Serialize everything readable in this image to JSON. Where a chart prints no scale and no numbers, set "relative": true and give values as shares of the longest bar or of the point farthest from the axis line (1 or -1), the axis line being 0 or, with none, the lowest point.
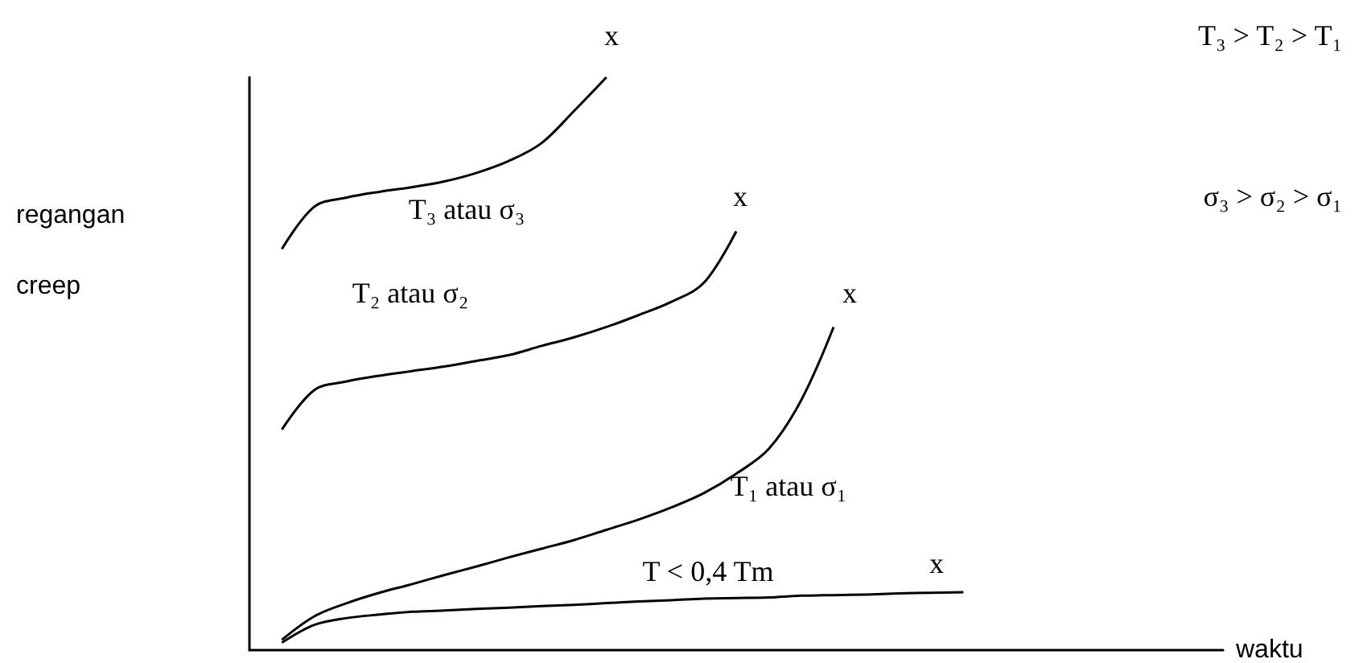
{
  "chart_data": {
    "type": "line",
    "relative": true,
    "xlabel": "waktu",
    "ylabel": "regangan\ncreep",
    "grid": false,
    "marker": "none",
    "line_style": "solid",
    "categories": [
      null,
      null,
      null,
      null,
      null,
      null,
      null,
      null,
      null,
      null,
      null,
      null,
      null,
      null,
      null,
      null,
      null,
      null,
      null,
      null,
      null,
      null,
      null,
      null,
      null,
      null,
      null,
      null,
      null,
      null,
      null
    ],
    "series": [
      {
        "color": "#000000",
        "values": [
          null,
          0.7,
          0.774,
          0.79,
          0.8,
          0.808,
          0.818,
          0.833,
          0.854,
          0.885,
          0.941,
          1,
          null,
          null,
          null,
          null,
          null,
          null,
          null,
          null,
          null,
          null,
          null,
          null,
          null,
          null,
          null,
          null,
          null,
          null,
          null
        ]
      },
      {
        "color": "#000000",
        "values": [
          null,
          0.385,
          0.454,
          0.469,
          0.479,
          0.487,
          0.495,
          0.505,
          0.515,
          0.531,
          0.546,
          0.564,
          0.585,
          0.608,
          0.641,
          0.731,
          null,
          null,
          null,
          null,
          null,
          null,
          null,
          null,
          null,
          null,
          null,
          null,
          null,
          null,
          null
        ]
      },
      {
        "color": "#000000",
        "values": [
          null,
          0.018,
          0.059,
          0.082,
          0.1,
          0.115,
          0.131,
          0.146,
          0.162,
          0.177,
          0.192,
          0.21,
          0.228,
          0.249,
          0.274,
          0.308,
          0.351,
          0.436,
          0.564,
          null,
          null,
          null,
          null,
          null,
          null,
          null,
          null,
          null,
          null,
          null,
          null
        ]
      },
      {
        "color": "#000000",
        "values": [
          null,
          0.013,
          0.044,
          0.056,
          0.062,
          0.067,
          0.069,
          0.072,
          0.074,
          0.077,
          0.079,
          0.082,
          0.085,
          0.087,
          0.09,
          0.091,
          0.092,
          0.095,
          0.096,
          0.097,
          0.099,
          0.1,
          0.101,
          null,
          null,
          null,
          null,
          null,
          null,
          null,
          null
        ]
      }
    ],
    "annotations": [
      "T₃ atau σ₃",
      "T₂ atau σ₂",
      "T₁ atau σ₁",
      "T < 0,4 Tm",
      "x",
      "x",
      "x",
      "x",
      "T₃ > T₂ > T₁",
      "σ₃ > σ₂ > σ₁"
    ]
  }
}
